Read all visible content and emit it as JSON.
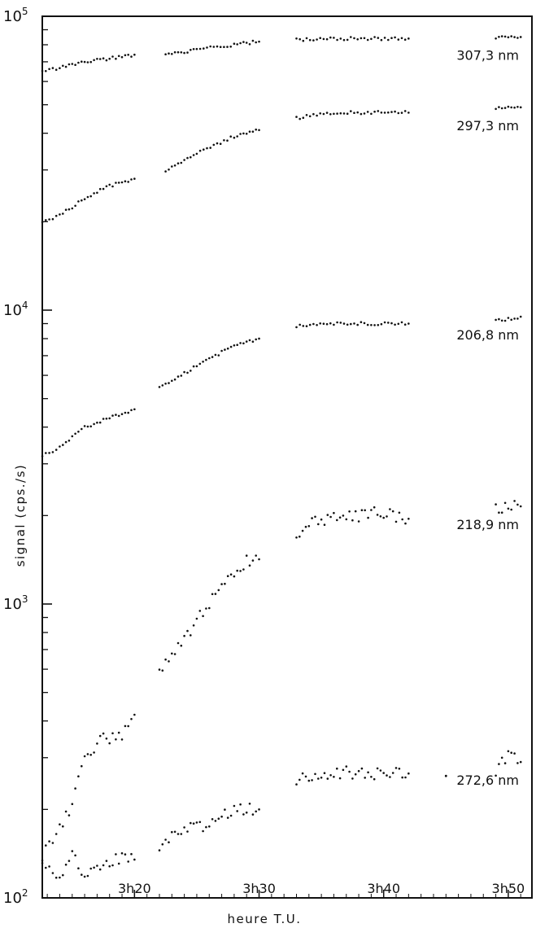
{
  "chart_data": {
    "type": "scatter",
    "xlabel": "heure T.U.",
    "ylabel": "signal (cps./s)",
    "y_scale": "log",
    "ylim": [
      100,
      100000
    ],
    "xlim": [
      "3h12.6",
      "3h51.9"
    ],
    "x_ticks": [
      {
        "value": "3h20",
        "label": "3h20"
      },
      {
        "value": "3h30",
        "label": "3h30"
      },
      {
        "value": "3h40",
        "label": "3h40"
      },
      {
        "value": "3h50",
        "label": "3h50"
      }
    ],
    "y_ticks": [
      {
        "value": 100,
        "base": "10",
        "exp": "2"
      },
      {
        "value": 1000,
        "base": "10",
        "exp": "3"
      },
      {
        "value": 10000,
        "base": "10",
        "exp": "4"
      },
      {
        "value": 100000,
        "base": "10",
        "exp": "5"
      }
    ],
    "grid": false,
    "legend": "none (labels placed beside each series)",
    "series": [
      {
        "name": "307,3 nm",
        "segments": [
          [
            [
              "3h12.6",
              65000
            ],
            [
              "3h14",
              67000
            ],
            [
              "3h16",
              70000
            ],
            [
              "3h18",
              72000
            ],
            [
              "3h20",
              74000
            ]
          ],
          [
            [
              "3h22.5",
              74000
            ],
            [
              "3h25",
              77000
            ],
            [
              "3h28",
              80000
            ],
            [
              "3h30",
              82000
            ]
          ],
          [
            [
              "3h33",
              83000
            ],
            [
              "3h36",
              84000
            ],
            [
              "3h39",
              84000
            ],
            [
              "3h42",
              84000
            ]
          ],
          [
            [
              "3h49",
              85000
            ],
            [
              "3h51",
              85000
            ]
          ]
        ]
      },
      {
        "name": "297,3 nm",
        "segments": [
          [
            [
              "3h12.6",
              20000
            ],
            [
              "3h14",
              21000
            ],
            [
              "3h16",
              24000
            ],
            [
              "3h18",
              26500
            ],
            [
              "3h20",
              28000
            ]
          ],
          [
            [
              "3h22.5",
              30000
            ],
            [
              "3h25",
              34000
            ],
            [
              "3h28",
              39000
            ],
            [
              "3h30",
              41000
            ]
          ],
          [
            [
              "3h33",
              45000
            ],
            [
              "3h36",
              47000
            ],
            [
              "3h39",
              47000
            ],
            [
              "3h42",
              47000
            ]
          ],
          [
            [
              "3h49",
              49000
            ],
            [
              "3h51",
              49000
            ]
          ]
        ]
      },
      {
        "name": "206,8 nm",
        "segments": [
          [
            [
              "3h12.6",
              3200
            ],
            [
              "3h14",
              3400
            ],
            [
              "3h16",
              4000
            ],
            [
              "3h18",
              4300
            ],
            [
              "3h20",
              4600
            ]
          ],
          [
            [
              "3h22",
              5500
            ],
            [
              "3h24",
              6100
            ],
            [
              "3h26",
              6800
            ],
            [
              "3h28",
              7600
            ],
            [
              "3h30",
              8000
            ]
          ],
          [
            [
              "3h33",
              8800
            ],
            [
              "3h36",
              9000
            ],
            [
              "3h39",
              9000
            ],
            [
              "3h42",
              9000
            ]
          ],
          [
            [
              "3h49",
              9200
            ],
            [
              "3h51",
              9500
            ]
          ]
        ]
      },
      {
        "name": "218,9 nm",
        "segments": [
          [
            [
              "3h12.6",
              140
            ],
            [
              "3h14",
              170
            ],
            [
              "3h15",
              210
            ],
            [
              "3h16",
              290
            ],
            [
              "3h17",
              340
            ],
            [
              "3h18",
              350
            ],
            [
              "3h19",
              360
            ],
            [
              "3h20",
              420
            ]
          ],
          [
            [
              "3h22",
              580
            ],
            [
              "3h24",
              750
            ],
            [
              "3h25",
              900
            ],
            [
              "3h26",
              1000
            ],
            [
              "3h27",
              1150
            ],
            [
              "3h28",
              1300
            ],
            [
              "3h29",
              1400
            ],
            [
              "3h30",
              1420
            ]
          ],
          [
            [
              "3h33",
              1750
            ],
            [
              "3h35",
              1950
            ],
            [
              "3h37",
              1950
            ],
            [
              "3h39",
              2050
            ],
            [
              "3h41",
              2000
            ],
            [
              "3h42",
              1950
            ]
          ],
          [
            [
              "3h49",
              2100
            ],
            [
              "3h50",
              2200
            ],
            [
              "3h51",
              2150
            ]
          ]
        ]
      },
      {
        "name": "272,6 nm",
        "segments": [
          [
            [
              "3h12.6",
              130
            ],
            [
              "3h14",
              120
            ],
            [
              "3h15",
              140
            ],
            [
              "3h16",
              120
            ],
            [
              "3h17",
              125
            ],
            [
              "3h18",
              130
            ],
            [
              "3h19",
              140
            ],
            [
              "3h20",
              135
            ]
          ],
          [
            [
              "3h22",
              150
            ],
            [
              "3h24",
              170
            ],
            [
              "3h26",
              180
            ],
            [
              "3h28",
              200
            ],
            [
              "3h30",
              200
            ]
          ],
          [
            [
              "3h33",
              250
            ],
            [
              "3h35",
              260
            ],
            [
              "3h37",
              270
            ],
            [
              "3h39",
              260
            ],
            [
              "3h41",
              270
            ],
            [
              "3h42",
              265
            ]
          ],
          [
            [
              "3h45",
              260
            ]
          ],
          [
            [
              "3h49",
              270
            ],
            [
              "3h50",
              310
            ],
            [
              "3h51",
              290
            ]
          ]
        ]
      }
    ]
  }
}
